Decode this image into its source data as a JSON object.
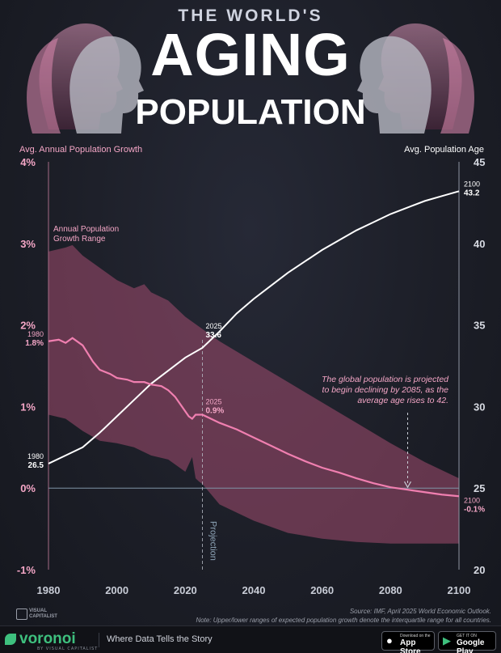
{
  "header": {
    "pre_title": "THE WORLD'S",
    "title": "AGING",
    "subtitle": "POPULATION"
  },
  "chart_data": {
    "type": "line",
    "title": "THE WORLD'S AGING POPULATION",
    "left_axis_label": "Avg. Annual Population Growth",
    "right_axis_label": "Avg. Population Age",
    "xlim": [
      1980,
      2100
    ],
    "x_ticks": [
      "1980",
      "2000",
      "2020",
      "2040",
      "2060",
      "2080",
      "2100"
    ],
    "left_ylim": [
      -1,
      4
    ],
    "left_ticks": [
      "-1%",
      "0%",
      "1%",
      "2%",
      "3%",
      "4%"
    ],
    "right_ylim": [
      20,
      45
    ],
    "right_ticks": [
      "20",
      "25",
      "30",
      "35",
      "40",
      "45"
    ],
    "grid": false,
    "projection_start": 2025,
    "projection_label": "Projection",
    "range_label": "Annual Population Growth Range",
    "annotation": "The global population is projected to begin declining by 2085, as the average age rises to 42.",
    "series": [
      {
        "name": "Avg. Population Age",
        "axis": "right",
        "color": "#ffffff",
        "x": [
          1980,
          1985,
          1990,
          1995,
          2000,
          2005,
          2010,
          2015,
          2020,
          2025,
          2030,
          2035,
          2040,
          2045,
          2050,
          2055,
          2060,
          2065,
          2070,
          2075,
          2080,
          2085,
          2090,
          2095,
          2100
        ],
        "values": [
          26.5,
          27.0,
          27.5,
          28.4,
          29.4,
          30.4,
          31.4,
          32.2,
          33.0,
          33.6,
          34.6,
          35.7,
          36.6,
          37.4,
          38.2,
          38.9,
          39.6,
          40.2,
          40.8,
          41.3,
          41.8,
          42.2,
          42.6,
          42.9,
          43.2
        ]
      },
      {
        "name": "Avg. Annual Population Growth",
        "axis": "left",
        "color": "#f07fb0",
        "x": [
          1980,
          1983,
          1985,
          1987,
          1990,
          1993,
          1995,
          1998,
          2000,
          2003,
          2005,
          2008,
          2010,
          2013,
          2015,
          2017,
          2019,
          2021,
          2022,
          2023,
          2025,
          2030,
          2035,
          2040,
          2045,
          2050,
          2055,
          2060,
          2065,
          2070,
          2075,
          2080,
          2085,
          2090,
          2095,
          2100
        ],
        "values": [
          1.8,
          1.82,
          1.78,
          1.84,
          1.75,
          1.55,
          1.45,
          1.4,
          1.35,
          1.33,
          1.3,
          1.3,
          1.27,
          1.25,
          1.2,
          1.12,
          1.0,
          0.88,
          0.85,
          0.9,
          0.9,
          0.8,
          0.72,
          0.62,
          0.52,
          0.42,
          0.33,
          0.25,
          0.19,
          0.12,
          0.06,
          0.01,
          -0.02,
          -0.05,
          -0.08,
          -0.1
        ]
      },
      {
        "name": "Growth range upper",
        "axis": "left",
        "x": [
          1980,
          1985,
          1987,
          1990,
          1995,
          2000,
          2005,
          2008,
          2010,
          2015,
          2020,
          2025,
          2030,
          2040,
          2050,
          2060,
          2070,
          2080,
          2090,
          2100
        ],
        "values": [
          2.9,
          2.95,
          2.98,
          2.85,
          2.7,
          2.55,
          2.45,
          2.5,
          2.4,
          2.3,
          2.1,
          1.95,
          1.8,
          1.55,
          1.3,
          1.05,
          0.8,
          0.55,
          0.32,
          0.12
        ]
      },
      {
        "name": "Growth range lower",
        "axis": "left",
        "x": [
          1980,
          1985,
          1990,
          1995,
          2000,
          2005,
          2010,
          2015,
          2020,
          2022,
          2023,
          2024,
          2025,
          2030,
          2040,
          2050,
          2060,
          2070,
          2080,
          2090,
          2100
        ],
        "values": [
          0.9,
          0.85,
          0.7,
          0.58,
          0.55,
          0.5,
          0.4,
          0.35,
          0.2,
          0.38,
          0.12,
          0.08,
          0.05,
          -0.2,
          -0.4,
          -0.55,
          -0.62,
          -0.66,
          -0.68,
          -0.68,
          -0.68
        ]
      }
    ],
    "point_labels": [
      {
        "year": "1980",
        "value": "1.8%",
        "series": "growth"
      },
      {
        "year": "1980",
        "value": "26.5",
        "series": "age"
      },
      {
        "year": "2025",
        "value": "33.6",
        "series": "age"
      },
      {
        "year": "2025",
        "value": "0.9%",
        "series": "growth"
      },
      {
        "year": "2100",
        "value": "43.2",
        "series": "age"
      },
      {
        "year": "2100",
        "value": "-0.1%",
        "series": "growth"
      }
    ]
  },
  "source": {
    "line1": "Source: IMF, April 2025 World Economic Outlook.",
    "line2": "Note: Upper/lower ranges of expected population growth denote the interquartile range for all countries."
  },
  "footer": {
    "brand": "voronoi",
    "brand_sub": "BY VISUAL CAPITALIST",
    "logo_text": "VISUAL CAPITALIST",
    "tagline": "Where Data Tells the Story",
    "app_store_small": "Download on the",
    "app_store": "App Store",
    "google_small": "GET IT ON",
    "google": "Google Play"
  },
  "colors": {
    "background": "#1b1d26",
    "growth_line": "#f07fb0",
    "growth_range": "#a34d70",
    "age_line": "#ffffff",
    "accent_text": "#f4a6c6",
    "voronoi_green": "#3ec07e"
  }
}
